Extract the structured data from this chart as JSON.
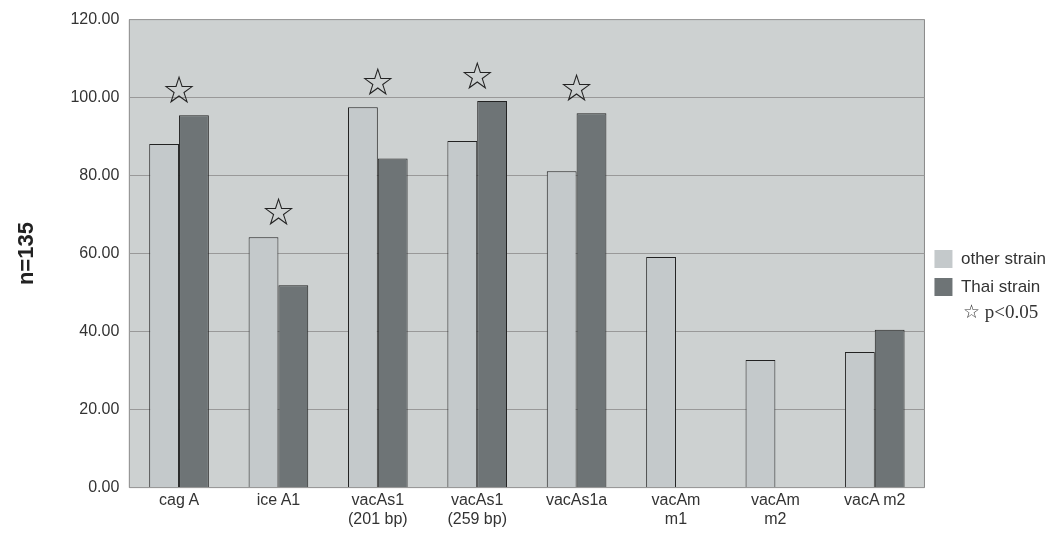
{
  "chart_data": {
    "type": "bar",
    "ylabel": "n=135",
    "categories": [
      "cag A",
      "ice A1",
      "vacAs1\n(201 bp)",
      "vacAs1\n(259 bp)",
      "vacAs1a",
      "vacAm\nm1",
      "vacAm\nm2",
      "vacA m2"
    ],
    "series": [
      {
        "name": "other strain",
        "color": "#c4c9cb",
        "values": [
          88.1,
          64.2,
          97.5,
          88.9,
          81.1,
          59.1,
          32.7,
          34.8
        ]
      },
      {
        "name": "Thai strain",
        "color": "#6e7476",
        "values": [
          95.5,
          51.9,
          84.4,
          99.1,
          96,
          null,
          null,
          40.5
        ]
      }
    ],
    "ylim": [
      0,
      120
    ],
    "yticks": [
      {
        "value": 0,
        "label": "0.00"
      },
      {
        "value": 20,
        "label": "20.00"
      },
      {
        "value": 40,
        "label": "40.00"
      },
      {
        "value": 60,
        "label": "60.00"
      },
      {
        "value": 80,
        "label": "80.00"
      },
      {
        "value": 100,
        "label": "100.00"
      },
      {
        "value": 120,
        "label": "120.00"
      }
    ],
    "grid": "y",
    "legend": "right",
    "annotations": [
      "☆",
      "☆",
      "☆",
      "☆",
      "☆",
      "☆ p<0.05"
    ]
  }
}
